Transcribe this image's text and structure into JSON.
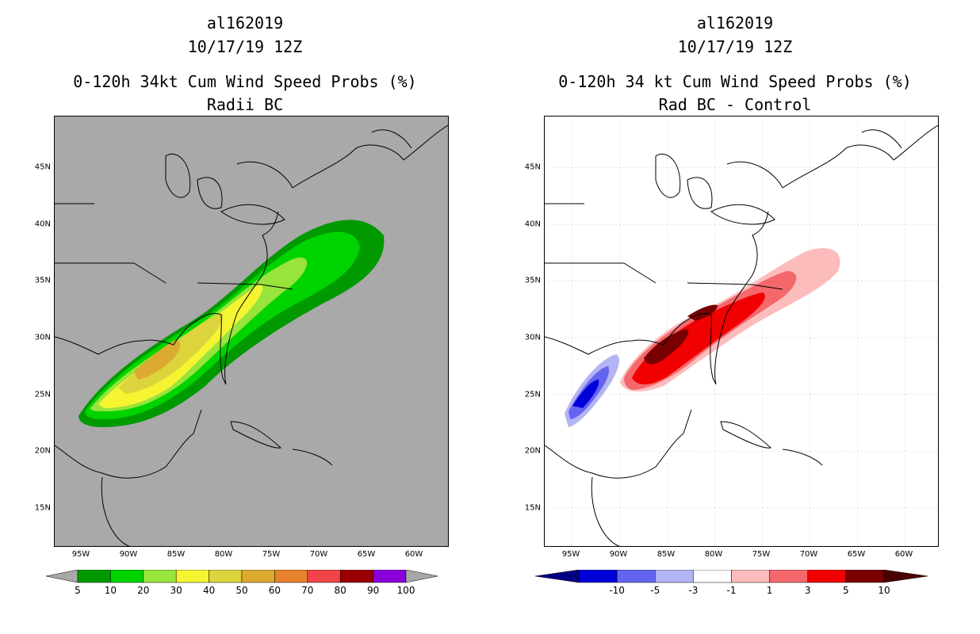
{
  "left_panel": {
    "storm_id": "al162019",
    "datetime": "10/17/19 12Z",
    "title": "0-120h 34kt Cum Wind Speed Probs (%)",
    "subtitle": "Radii BC",
    "colorbar": {
      "labels": [
        "5",
        "10",
        "20",
        "30",
        "40",
        "50",
        "60",
        "70",
        "80",
        "90",
        "100"
      ],
      "colors": [
        "#009a00",
        "#00d400",
        "#98e33c",
        "#f4f431",
        "#dcd43c",
        "#dcaa30",
        "#e8822c",
        "#f04448",
        "#9a0000",
        "#8a00d8"
      ]
    }
  },
  "right_panel": {
    "storm_id": "al162019",
    "datetime": "10/17/19 12Z",
    "title": "0-120h 34 kt Cum Wind Speed Probs (%)",
    "subtitle": "Rad BC - Control",
    "colorbar": {
      "labels": [
        "-10",
        "-5",
        "-3",
        "-1",
        "1",
        "3",
        "5",
        "10"
      ],
      "colors": [
        "#0000d8",
        "#6464f0",
        "#b4b4f4",
        "#ffffff",
        "#fcbcbc",
        "#f4686c",
        "#f00000",
        "#780000"
      ]
    }
  },
  "axes": {
    "lat_labels": [
      "45N",
      "40N",
      "35N",
      "30N",
      "25N",
      "20N",
      "15N"
    ],
    "lon_labels": [
      "95W",
      "90W",
      "85W",
      "80W",
      "75W",
      "70W",
      "65W",
      "60W"
    ]
  }
}
